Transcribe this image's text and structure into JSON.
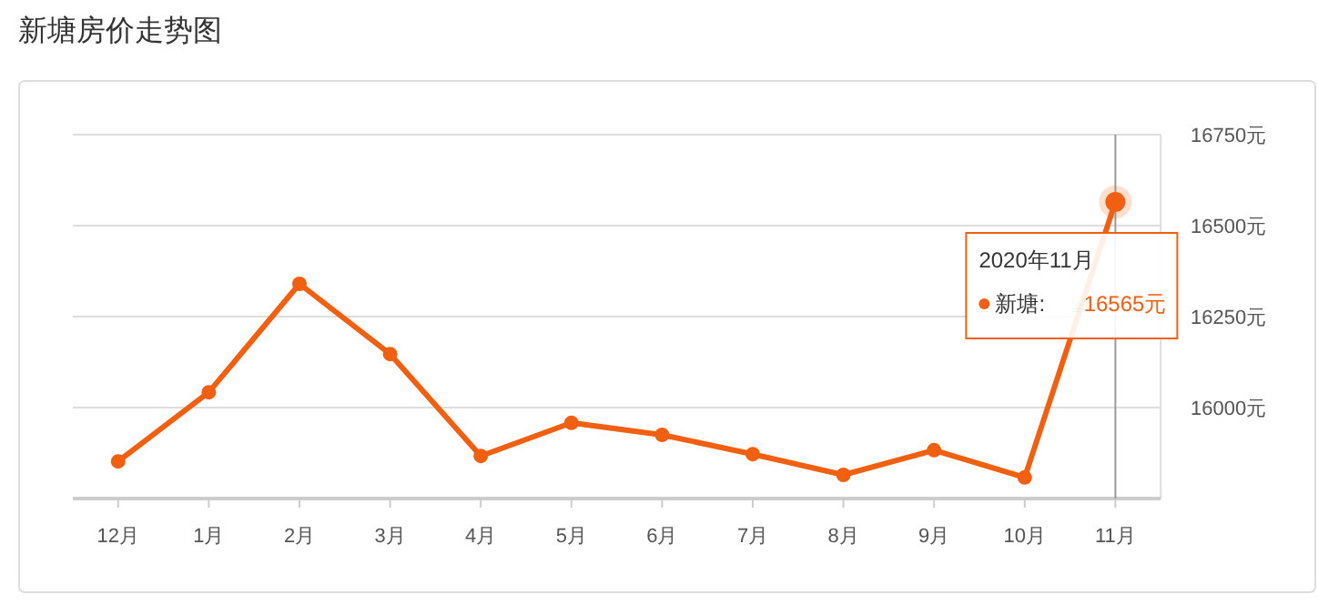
{
  "chart_data": {
    "type": "line",
    "title": "新塘房价走势图",
    "categories": [
      "12月",
      "1月",
      "2月",
      "3月",
      "4月",
      "5月",
      "6月",
      "7月",
      "8月",
      "9月",
      "10月",
      "11月"
    ],
    "series": [
      {
        "color": "#f06010",
        "values": [
          15852,
          16042,
          16340,
          16147,
          15867,
          15958,
          15925,
          15872,
          15815,
          15883,
          15808,
          16565
        ]
      }
    ],
    "ylim": [
      15750,
      16750
    ],
    "yticks": [
      {
        "value": 16000,
        "label": "16000元"
      },
      {
        "value": 16250,
        "label": "16250元"
      },
      {
        "value": 16500,
        "label": "16500元"
      },
      {
        "value": 16750,
        "label": "16750元"
      }
    ],
    "grid": "y",
    "marker": "circle",
    "ref_lines": [
      {
        "axis": "x",
        "value": "11月",
        "color": "#999999"
      }
    ],
    "annotations": [
      {
        "text": "2020年11月",
        "x": "11月",
        "y": 16565
      },
      "新塘:",
      "16565元"
    ]
  }
}
